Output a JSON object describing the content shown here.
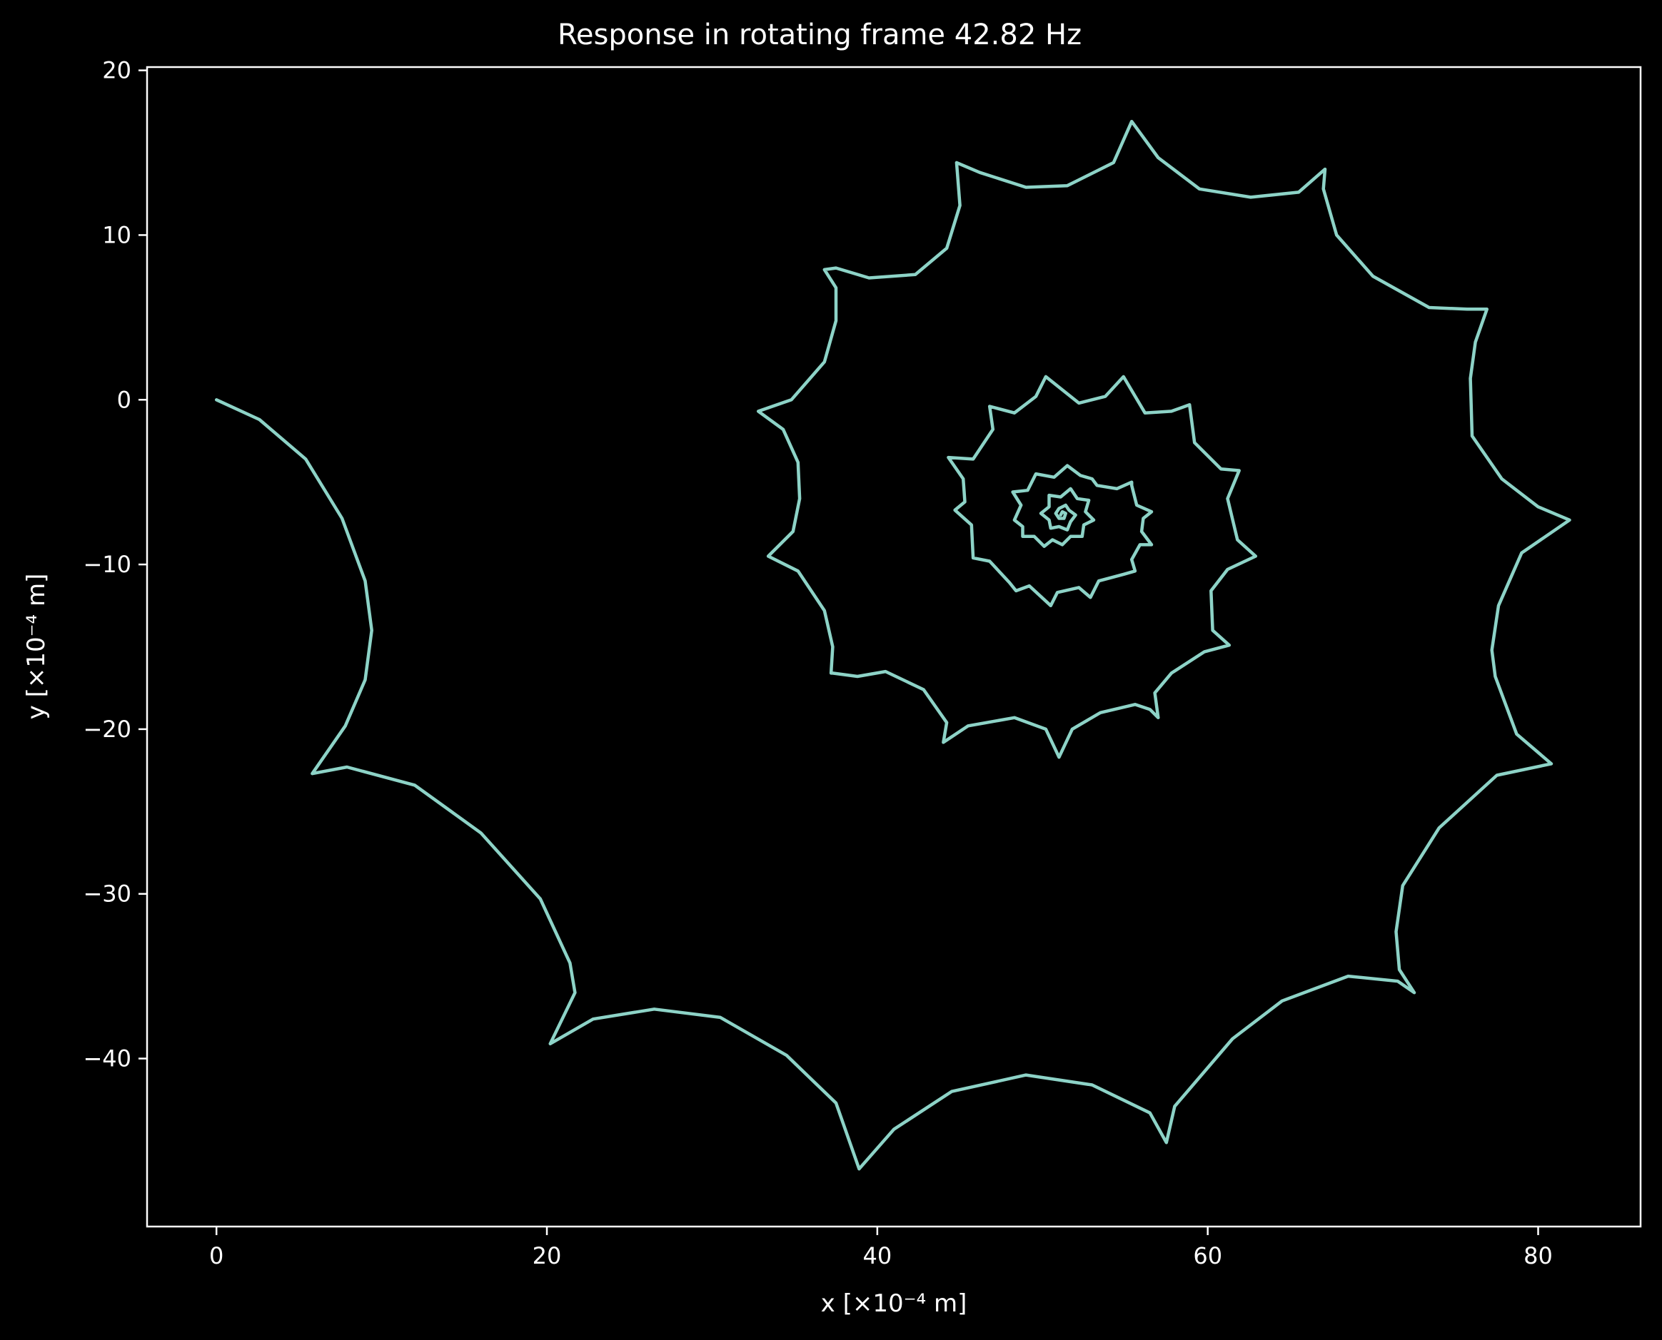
{
  "chart_data": {
    "type": "line",
    "title": "Response in rotating frame 42.82 Hz",
    "xlabel": "x [×10⁻⁴ m]",
    "ylabel": "y [×10⁻⁴ m]",
    "xlim": [
      -4.2,
      86.2
    ],
    "ylim": [
      -50.2,
      20.2
    ],
    "xticks": [
      0,
      20,
      40,
      60,
      80
    ],
    "xtick_labels": [
      "0",
      "20",
      "40",
      "60",
      "80"
    ],
    "yticks": [
      20,
      10,
      0,
      -10,
      -20,
      -30,
      -40
    ],
    "ytick_labels": [
      "20",
      "10",
      "0",
      "−10",
      "−20",
      "−30",
      "−40"
    ],
    "grid": false,
    "legend": "none",
    "colors": {
      "background": "#000000",
      "axes": "#ffffff",
      "text": "#ffffff",
      "series": "#8dd3c7"
    },
    "series": [
      {
        "color": "#8dd3c7",
        "points": [
          [
            0,
            0
          ],
          [
            2.6,
            -1.2
          ],
          [
            5.4,
            -3.6
          ],
          [
            7.6,
            -7.2
          ],
          [
            9.0,
            -11.0
          ],
          [
            9.4,
            -14.0
          ],
          [
            9.0,
            -17.0
          ],
          [
            7.8,
            -19.8
          ],
          [
            5.8,
            -22.7
          ],
          [
            7.9,
            -22.3
          ],
          [
            12,
            -23.4
          ],
          [
            16,
            -26.3
          ],
          [
            19.6,
            -30.3
          ],
          [
            21.4,
            -34.2
          ],
          [
            21.7,
            -36.0
          ],
          [
            20.2,
            -39.1
          ],
          [
            22.8,
            -37.6
          ],
          [
            26.5,
            -37.0
          ],
          [
            30.5,
            -37.5
          ],
          [
            34.5,
            -39.8
          ],
          [
            37.5,
            -42.7
          ],
          [
            38.9,
            -46.7
          ],
          [
            41.0,
            -44.3
          ],
          [
            44.5,
            -42.0
          ],
          [
            49,
            -41.0
          ],
          [
            53,
            -41.6
          ],
          [
            56.5,
            -43.3
          ],
          [
            57.5,
            -45.1
          ],
          [
            58.0,
            -42.9
          ],
          [
            61.5,
            -38.8
          ],
          [
            64.5,
            -36.5
          ],
          [
            68.5,
            -35.0
          ],
          [
            71.5,
            -35.3
          ],
          [
            72.5,
            -36.0
          ],
          [
            71.6,
            -34.6
          ],
          [
            71.4,
            -32.3
          ],
          [
            71.8,
            -29.5
          ],
          [
            74.0,
            -26.0
          ],
          [
            77.5,
            -22.8
          ],
          [
            80.8,
            -22.1
          ],
          [
            78.7,
            -20.3
          ],
          [
            77.4,
            -16.8
          ],
          [
            77.2,
            -15.2
          ],
          [
            77.6,
            -12.5
          ],
          [
            79.0,
            -9.3
          ],
          [
            81.9,
            -7.3
          ],
          [
            80.0,
            -6.5
          ],
          [
            77.8,
            -4.8
          ],
          [
            76.0,
            -2.2
          ],
          [
            75.9,
            1.3
          ],
          [
            76.2,
            3.5
          ],
          [
            76.9,
            5.5
          ],
          [
            75.7,
            5.5
          ],
          [
            73.4,
            5.6
          ],
          [
            70.0,
            7.5
          ],
          [
            67.8,
            10.0
          ],
          [
            67.0,
            12.8
          ],
          [
            67.1,
            14.0
          ],
          [
            65.5,
            12.6
          ],
          [
            62.6,
            12.3
          ],
          [
            59.5,
            12.8
          ],
          [
            57.0,
            14.7
          ],
          [
            55.4,
            16.9
          ],
          [
            54.3,
            14.4
          ],
          [
            51.5,
            13.0
          ],
          [
            49.0,
            12.9
          ],
          [
            46.2,
            13.8
          ],
          [
            44.8,
            14.4
          ],
          [
            45.0,
            11.8
          ],
          [
            44.2,
            9.2
          ],
          [
            42.3,
            7.6
          ],
          [
            39.5,
            7.4
          ],
          [
            37.5,
            8.0
          ],
          [
            36.8,
            7.9
          ],
          [
            37.5,
            6.8
          ],
          [
            37.5,
            4.8
          ],
          [
            36.8,
            2.3
          ],
          [
            34.8,
            0.0
          ],
          [
            32.8,
            -0.7
          ],
          [
            34.3,
            -1.8
          ],
          [
            35.2,
            -3.8
          ],
          [
            35.3,
            -6.0
          ],
          [
            34.9,
            -8.0
          ],
          [
            33.4,
            -9.5
          ],
          [
            35.2,
            -10.4
          ],
          [
            36.8,
            -12.8
          ],
          [
            37.3,
            -15.0
          ],
          [
            37.2,
            -16.6
          ],
          [
            37.3,
            -16.6
          ],
          [
            38.8,
            -16.8
          ],
          [
            40.5,
            -16.5
          ],
          [
            42.8,
            -17.6
          ],
          [
            44.2,
            -19.6
          ],
          [
            44.0,
            -20.8
          ],
          [
            45.5,
            -19.8
          ],
          [
            48.3,
            -19.3
          ],
          [
            50.2,
            -20.0
          ],
          [
            51.0,
            -21.7
          ],
          [
            51.8,
            -20.0
          ],
          [
            53.5,
            -19.0
          ],
          [
            55.6,
            -18.5
          ],
          [
            56.5,
            -18.8
          ],
          [
            57.0,
            -19.3
          ],
          [
            56.8,
            -17.8
          ],
          [
            57.8,
            -16.6
          ],
          [
            59.8,
            -15.3
          ],
          [
            61.3,
            -14.9
          ],
          [
            60.3,
            -14.0
          ],
          [
            60.2,
            -11.6
          ],
          [
            61.2,
            -10.3
          ],
          [
            62.9,
            -9.5
          ],
          [
            61.8,
            -8.5
          ],
          [
            61.2,
            -6.0
          ],
          [
            61.9,
            -4.3
          ],
          [
            60.8,
            -4.2
          ],
          [
            59.2,
            -2.6
          ],
          [
            58.9,
            -0.3
          ],
          [
            57.8,
            -0.7
          ],
          [
            56.2,
            -0.8
          ],
          [
            54.9,
            1.4
          ],
          [
            53.8,
            0.2
          ],
          [
            52.2,
            -0.2
          ],
          [
            50.2,
            1.4
          ],
          [
            49.6,
            0.2
          ],
          [
            48.3,
            -0.8
          ],
          [
            46.8,
            -0.4
          ],
          [
            47.0,
            -1.8
          ],
          [
            45.8,
            -3.6
          ],
          [
            44.3,
            -3.5
          ],
          [
            45.2,
            -4.8
          ],
          [
            45.3,
            -6.2
          ],
          [
            44.7,
            -6.7
          ],
          [
            45.7,
            -7.6
          ],
          [
            45.8,
            -9.6
          ],
          [
            46.8,
            -9.8
          ],
          [
            48.0,
            -11.1
          ],
          [
            48.4,
            -11.6
          ],
          [
            49.2,
            -11.3
          ],
          [
            50.5,
            -12.5
          ],
          [
            50.9,
            -11.7
          ],
          [
            52.2,
            -11.4
          ],
          [
            52.9,
            -12.0
          ],
          [
            53.4,
            -11.0
          ],
          [
            54.9,
            -10.6
          ],
          [
            55.6,
            -10.4
          ],
          [
            55.4,
            -9.7
          ],
          [
            55.9,
            -8.8
          ],
          [
            56.6,
            -8.8
          ],
          [
            56.0,
            -8.0
          ],
          [
            56.1,
            -7.2
          ],
          [
            56.6,
            -6.8
          ],
          [
            55.7,
            -6.4
          ],
          [
            55.4,
            -5.2
          ],
          [
            55.4,
            -5.0
          ],
          [
            54.5,
            -5.4
          ],
          [
            53.3,
            -5.2
          ],
          [
            53.0,
            -4.8
          ],
          [
            52.3,
            -4.6
          ],
          [
            51.5,
            -4.0
          ],
          [
            50.7,
            -4.7
          ],
          [
            49.6,
            -4.5
          ],
          [
            49.1,
            -5.5
          ],
          [
            48.2,
            -5.6
          ],
          [
            48.7,
            -6.4
          ],
          [
            48.3,
            -7.3
          ],
          [
            48.8,
            -7.7
          ],
          [
            48.8,
            -8.3
          ],
          [
            49.5,
            -8.3
          ],
          [
            50.1,
            -8.9
          ],
          [
            50.6,
            -8.5
          ],
          [
            51.2,
            -8.8
          ],
          [
            51.7,
            -8.3
          ],
          [
            52.4,
            -8.3
          ],
          [
            52.5,
            -7.6
          ],
          [
            53.1,
            -7.3
          ],
          [
            52.6,
            -6.8
          ],
          [
            52.8,
            -6.1
          ],
          [
            52.1,
            -6.0
          ],
          [
            51.7,
            -5.4
          ],
          [
            51.1,
            -5.9
          ],
          [
            50.4,
            -5.8
          ],
          [
            50.4,
            -6.5
          ],
          [
            49.9,
            -6.9
          ],
          [
            50.4,
            -7.3
          ],
          [
            50.5,
            -7.8
          ],
          [
            51.0,
            -7.7
          ],
          [
            51.5,
            -7.9
          ],
          [
            51.7,
            -7.4
          ],
          [
            52.0,
            -7.0
          ],
          [
            51.6,
            -6.7
          ],
          [
            51.4,
            -6.4
          ],
          [
            51.0,
            -6.6
          ],
          [
            50.8,
            -6.9
          ],
          [
            51.0,
            -7.2
          ],
          [
            51.3,
            -7.2
          ],
          [
            51.4,
            -6.9
          ],
          [
            51.2,
            -6.8
          ],
          [
            51.1,
            -7.0
          ]
        ]
      }
    ]
  }
}
